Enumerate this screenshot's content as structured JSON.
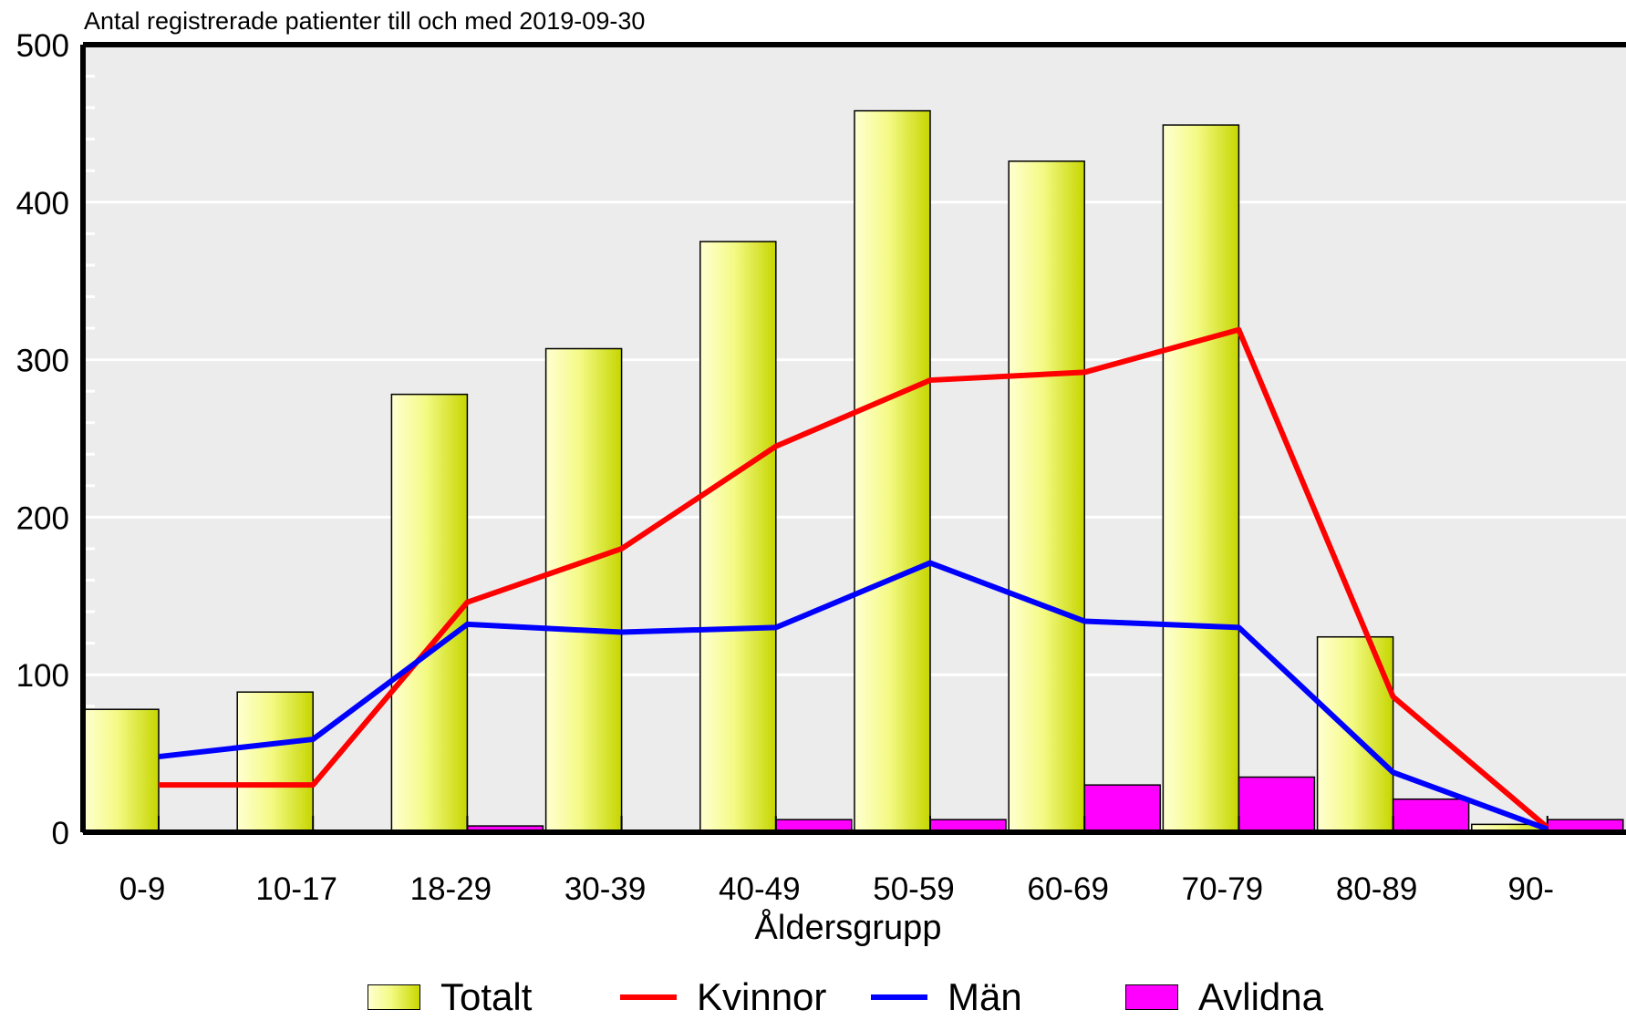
{
  "chart_data": {
    "type": "bar",
    "title": "Antal registrerade patienter till och med 2019-09-30",
    "xlabel": "Åldersgrupp",
    "ylabel": "",
    "ylim": [
      0,
      500
    ],
    "yticks": [
      0,
      100,
      200,
      300,
      400,
      500
    ],
    "categories": [
      "0-9",
      "10-17",
      "18-29",
      "30-39",
      "40-49",
      "50-59",
      "60-69",
      "70-79",
      "80-89",
      "90-"
    ],
    "series": [
      {
        "name": "Totalt",
        "kind": "bar",
        "color": "#d6e61a",
        "values": [
          78,
          89,
          278,
          307,
          375,
          458,
          426,
          449,
          124,
          5
        ]
      },
      {
        "name": "Kvinnor",
        "kind": "line",
        "color": "#ff0000",
        "values": [
          30,
          30,
          146,
          180,
          245,
          287,
          292,
          319,
          86,
          3
        ]
      },
      {
        "name": "Män",
        "kind": "line",
        "color": "#0000ff",
        "values": [
          48,
          59,
          132,
          127,
          130,
          171,
          134,
          130,
          38,
          2
        ]
      },
      {
        "name": "Avlidna",
        "kind": "bar",
        "color": "#ff00ff",
        "values": [
          1,
          0,
          4,
          1,
          8,
          8,
          30,
          35,
          21,
          8
        ]
      }
    ],
    "grid": true,
    "legend_position": "bottom"
  }
}
